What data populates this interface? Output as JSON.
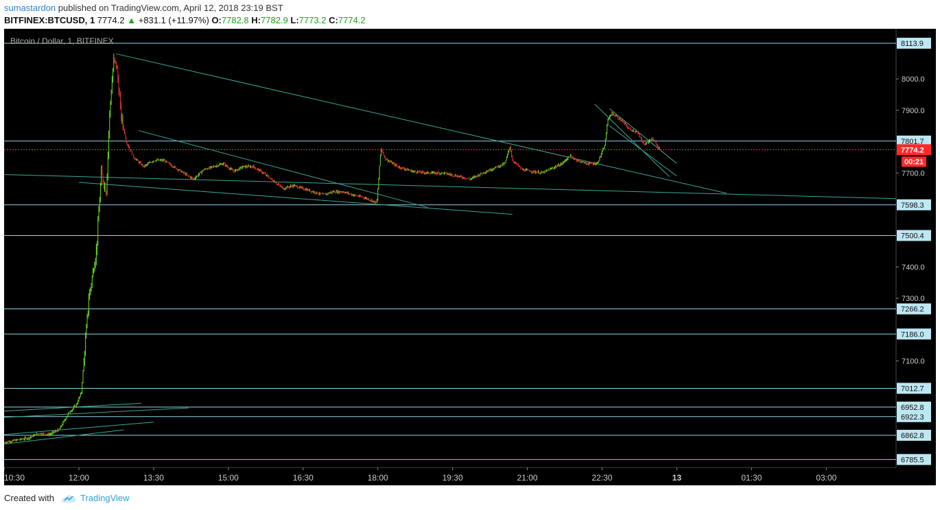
{
  "header": {
    "author": "sumastardon",
    "published_text": "published on TradingView.com, April 12, 2018 23:19 BST",
    "symbol": "BITFINEX:BTCUSD, 1",
    "last": "7774.2",
    "change": "+831.1 (+11.97%)",
    "open_label": "O:",
    "open": "7782.8",
    "high_label": "H:",
    "high": "7782.9",
    "low_label": "L:",
    "low": "7773.2",
    "close_label": "C:",
    "close": "7774.2"
  },
  "footer": {
    "created_with": "Created with",
    "brand": "TradingView"
  },
  "colors": {
    "background": "#000000",
    "up_candle": "#6fe31f",
    "down_candle": "#e83030",
    "trendline": "#39a99a",
    "hline": "#8fd6e8",
    "label_bg": "#bde7f2",
    "current_price_bg": "#ff2a2a",
    "brand_blue": "#2e9fd8"
  },
  "chart_data": {
    "type": "candlestick",
    "title": "Bitcoin / Dollar, 1, BITFINEX",
    "ylim": [
      6760,
      8160
    ],
    "y_ticks": [
      "8000.0",
      "7900.0",
      "7700.0",
      "7400.0",
      "7300.0",
      "7100.0"
    ],
    "x_ticks": [
      {
        "label": "10:30",
        "h": 10.5
      },
      {
        "label": "12:00",
        "h": 12
      },
      {
        "label": "13:30",
        "h": 13.5
      },
      {
        "label": "15:00",
        "h": 15
      },
      {
        "label": "16:30",
        "h": 16.5
      },
      {
        "label": "18:00",
        "h": 18
      },
      {
        "label": "19:30",
        "h": 19.5
      },
      {
        "label": "21:00",
        "h": 21
      },
      {
        "label": "22:30",
        "h": 22.5
      },
      {
        "label": "13",
        "h": 24
      },
      {
        "label": "01:30",
        "h": 25.5
      },
      {
        "label": "03:00",
        "h": 27
      }
    ],
    "xlim_hours": [
      10.5,
      28.4
    ],
    "price_levels": [
      "8113.9",
      "7801.7",
      "7598.3",
      "7500.4",
      "7266.2",
      "7186.0",
      "7012.7",
      "6952.8",
      "6922.3",
      "6862.8",
      "6785.5"
    ],
    "current_price": "7774.2",
    "countdown": "00:21",
    "price_path": [
      [
        10.5,
        6840
      ],
      [
        11.0,
        6855
      ],
      [
        11.2,
        6870
      ],
      [
        11.4,
        6865
      ],
      [
        11.6,
        6880
      ],
      [
        11.8,
        6935
      ],
      [
        11.95,
        6960
      ],
      [
        12.05,
        7000
      ],
      [
        12.2,
        7300
      ],
      [
        12.35,
        7450
      ],
      [
        12.45,
        7700
      ],
      [
        12.55,
        7640
      ],
      [
        12.62,
        7900
      ],
      [
        12.7,
        8060
      ],
      [
        12.76,
        8040
      ],
      [
        12.85,
        7880
      ],
      [
        12.95,
        7800
      ],
      [
        13.1,
        7750
      ],
      [
        13.3,
        7720
      ],
      [
        13.5,
        7740
      ],
      [
        13.7,
        7740
      ],
      [
        13.9,
        7720
      ],
      [
        14.1,
        7700
      ],
      [
        14.3,
        7680
      ],
      [
        14.5,
        7710
      ],
      [
        14.7,
        7720
      ],
      [
        14.9,
        7730
      ],
      [
        15.1,
        7705
      ],
      [
        15.3,
        7720
      ],
      [
        15.5,
        7720
      ],
      [
        15.7,
        7700
      ],
      [
        15.9,
        7675
      ],
      [
        16.1,
        7650
      ],
      [
        16.3,
        7660
      ],
      [
        16.5,
        7650
      ],
      [
        16.7,
        7640
      ],
      [
        16.9,
        7630
      ],
      [
        17.1,
        7640
      ],
      [
        17.3,
        7640
      ],
      [
        17.5,
        7630
      ],
      [
        17.75,
        7620
      ],
      [
        17.98,
        7605
      ],
      [
        18.02,
        7690
      ],
      [
        18.06,
        7780
      ],
      [
        18.15,
        7745
      ],
      [
        18.4,
        7720
      ],
      [
        18.7,
        7705
      ],
      [
        19.0,
        7700
      ],
      [
        19.3,
        7700
      ],
      [
        19.6,
        7690
      ],
      [
        19.85,
        7680
      ],
      [
        20.1,
        7700
      ],
      [
        20.4,
        7720
      ],
      [
        20.55,
        7730
      ],
      [
        20.65,
        7785
      ],
      [
        20.7,
        7740
      ],
      [
        20.9,
        7710
      ],
      [
        21.1,
        7705
      ],
      [
        21.3,
        7700
      ],
      [
        21.5,
        7715
      ],
      [
        21.7,
        7730
      ],
      [
        21.85,
        7755
      ],
      [
        22.0,
        7740
      ],
      [
        22.2,
        7730
      ],
      [
        22.4,
        7730
      ],
      [
        22.55,
        7785
      ],
      [
        22.62,
        7875
      ],
      [
        22.7,
        7890
      ],
      [
        22.9,
        7865
      ],
      [
        23.05,
        7840
      ],
      [
        23.2,
        7830
      ],
      [
        23.35,
        7790
      ],
      [
        23.5,
        7810
      ],
      [
        23.65,
        7780
      ]
    ],
    "trendlines": [
      [
        [
          12.75,
          8080
        ],
        [
          25.0,
          7635
        ]
      ],
      [
        [
          13.2,
          7835
        ],
        [
          19.0,
          7590
        ]
      ],
      [
        [
          10.5,
          7695
        ],
        [
          28.4,
          7618
        ]
      ],
      [
        [
          12.0,
          7670
        ],
        [
          20.7,
          7568
        ]
      ],
      [
        [
          22.35,
          7920
        ],
        [
          23.85,
          7688
        ]
      ],
      [
        [
          22.65,
          7905
        ],
        [
          24.0,
          7730
        ]
      ],
      [
        [
          22.65,
          7850
        ],
        [
          24.0,
          7690
        ]
      ],
      [
        [
          10.5,
          6940
        ],
        [
          13.25,
          6965
        ]
      ],
      [
        [
          10.5,
          6920
        ],
        [
          14.2,
          6950
        ]
      ],
      [
        [
          10.5,
          6865
        ],
        [
          13.5,
          6905
        ]
      ],
      [
        [
          10.5,
          6835
        ],
        [
          12.9,
          6880
        ]
      ]
    ]
  }
}
